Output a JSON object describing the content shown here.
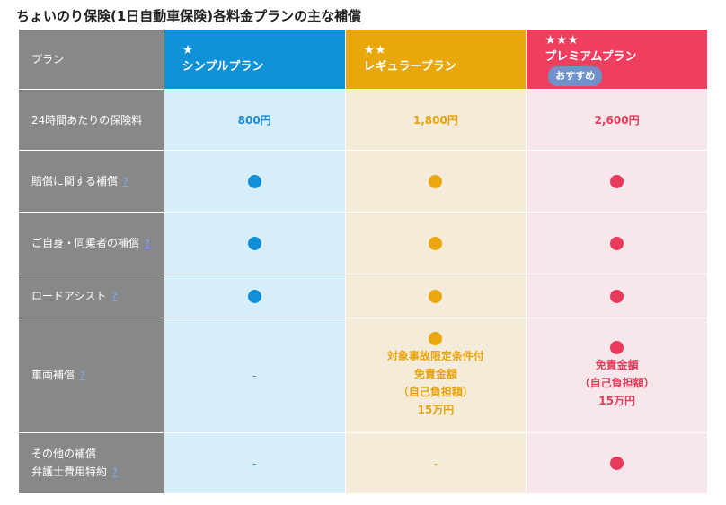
{
  "title": "ちょいのり保険(1日自動車保険)各料金プランの主な補償",
  "header": {
    "label": "プラン",
    "plans": [
      {
        "stars": "★",
        "name": "シンプルプラン"
      },
      {
        "stars": "★★",
        "name": "レギュラープラン"
      },
      {
        "stars": "★★★",
        "name": "プレミアムプラン",
        "badge": "おすすめ"
      }
    ]
  },
  "help_label": "?",
  "rows": {
    "price": {
      "label": "24時間あたりの保険料",
      "values": [
        "800円",
        "1,800円",
        "2,600円"
      ]
    },
    "liability": {
      "label": "賠償に関する補償"
    },
    "personal": {
      "label": "ご自身・同乗者の補償"
    },
    "roadside": {
      "label": "ロードアシスト"
    },
    "vehicle": {
      "label": "車両補償",
      "simple": "-",
      "regular": [
        "対象事故限定条件付",
        "免責金額",
        "（自己負担額）",
        "15万円"
      ],
      "premium": [
        "免責金額",
        "（自己負担額）",
        "15万円"
      ]
    },
    "other": {
      "label_line1": "その他の補償",
      "label_line2": "弁護士費用特約",
      "simple": "-",
      "regular": "-"
    }
  },
  "colors": {
    "simple": "#0e91d6",
    "regular": "#e8a70a",
    "premium": "#ef3e5e",
    "row_header": "#888888",
    "badge": "#6f92cc"
  },
  "icons": {
    "included": "filled-circle-icon"
  }
}
